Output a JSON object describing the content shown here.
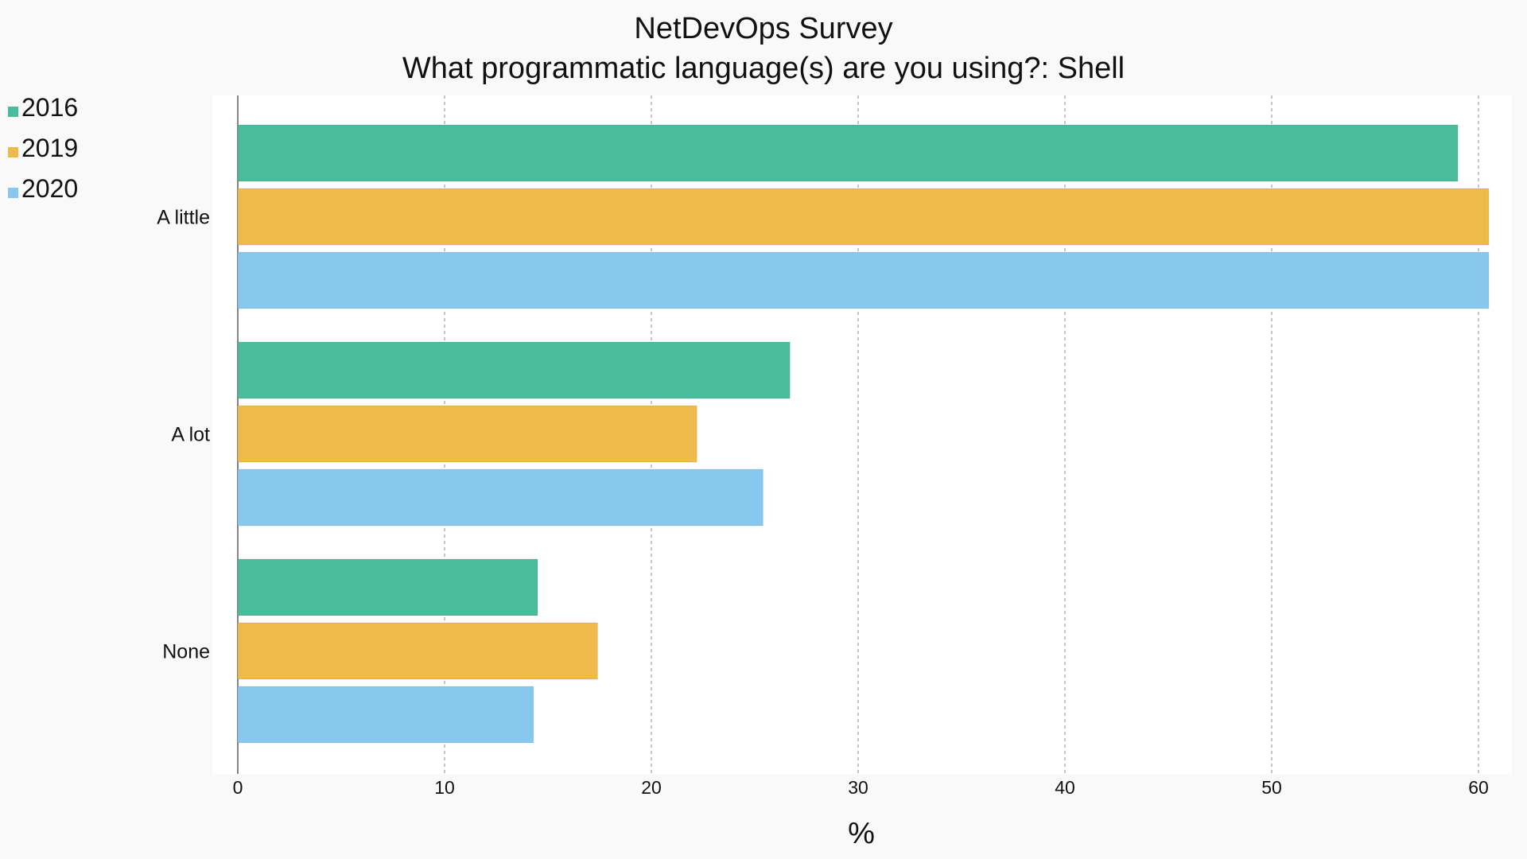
{
  "chart_data": {
    "type": "bar",
    "orientation": "horizontal",
    "title": "NetDevOps Survey",
    "subtitle": "What programmatic language(s) are you using?: Shell",
    "xlabel": "%",
    "ylabel": "",
    "xlim": [
      0,
      62
    ],
    "xticks": [
      0,
      10,
      20,
      30,
      40,
      50,
      60
    ],
    "grid": "vertical dashed",
    "legend_position": "top-left",
    "categories": [
      "A little",
      "A lot",
      "None"
    ],
    "series": [
      {
        "name": "2016",
        "color": "#4bbc9b",
        "values": [
          59.0,
          26.7,
          14.5
        ]
      },
      {
        "name": "2019",
        "color": "#eebb4b",
        "values": [
          60.5,
          22.2,
          17.4
        ]
      },
      {
        "name": "2020",
        "color": "#88c8ef",
        "values": [
          60.5,
          25.4,
          14.3
        ]
      }
    ]
  }
}
